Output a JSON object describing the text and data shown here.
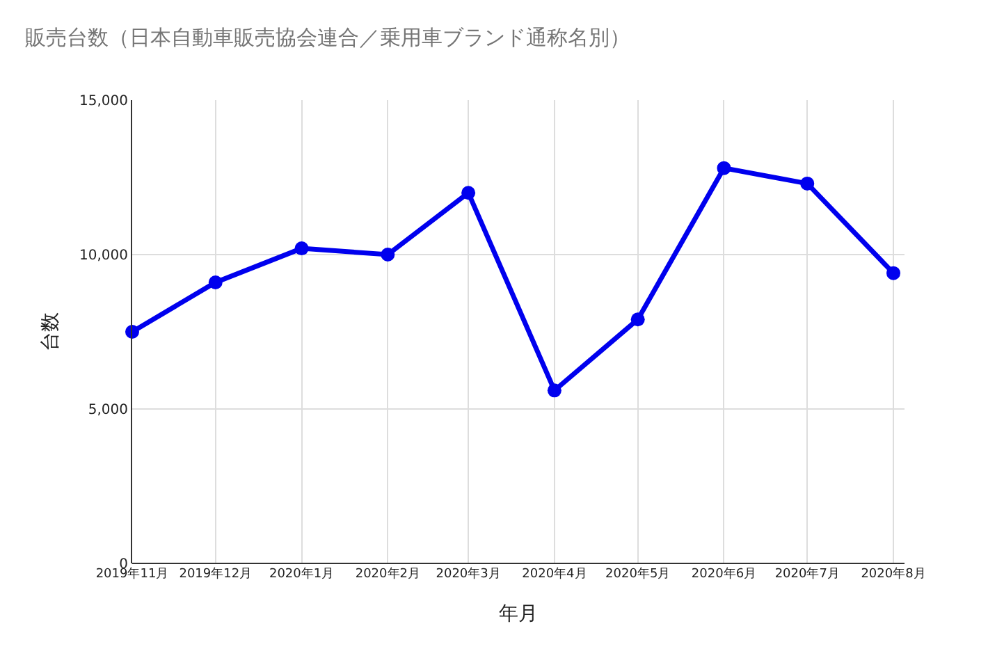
{
  "chart_data": {
    "type": "line",
    "title": "販売台数（日本自動車販売協会連合／乗用車ブランド通称名別）",
    "xlabel": "年月",
    "ylabel": "台数",
    "x": [
      "2019-11-01",
      "2019-12-01",
      "2020-01-01",
      "2020-02-01",
      "2020-03-01",
      "2020-04-01",
      "2020-05-01",
      "2020-06-01",
      "2020-07-01",
      "2020-08-01"
    ],
    "series": [
      {
        "color": "#0000ee",
        "values": [
          7500,
          9100,
          10200,
          10000,
          12000,
          5600,
          7900,
          12800,
          12300,
          9400
        ]
      }
    ],
    "xlim": [
      "2019-11-01",
      "2020-08-05"
    ],
    "xticks": [
      {
        "value": "2019-11-01",
        "label": "2019年11月"
      },
      {
        "value": "2019-12-01",
        "label": "2019年12月"
      },
      {
        "value": "2020-01-01",
        "label": "2020年1月"
      },
      {
        "value": "2020-02-01",
        "label": "2020年2月"
      },
      {
        "value": "2020-03-01",
        "label": "2020年3月"
      },
      {
        "value": "2020-04-01",
        "label": "2020年4月"
      },
      {
        "value": "2020-05-01",
        "label": "2020年5月"
      },
      {
        "value": "2020-06-01",
        "label": "2020年6月"
      },
      {
        "value": "2020-07-01",
        "label": "2020年7月"
      },
      {
        "value": "2020-08-01",
        "label": "2020年8月"
      }
    ],
    "ylim": [
      0,
      15000
    ],
    "yticks": [
      {
        "value": 0,
        "label": "0"
      },
      {
        "value": 5000,
        "label": "5,000"
      },
      {
        "value": 10000,
        "label": "10,000"
      },
      {
        "value": 15000,
        "label": "15,000"
      }
    ],
    "grid": true,
    "marker": "circle",
    "line_style": "solid"
  }
}
